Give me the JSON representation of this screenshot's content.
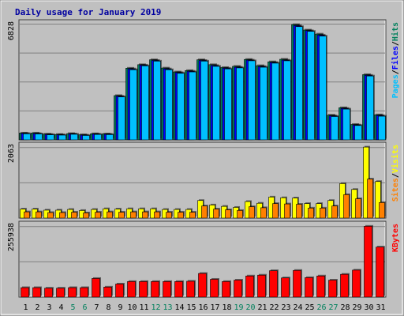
{
  "window": {
    "title": "Daily usage for January 2019"
  },
  "colors": {
    "background": "#c0c0c0",
    "title": "#0000a0",
    "hits": "#00805c",
    "files": "#0000ff",
    "pages": "#00c0ff",
    "visits": "#ffff00",
    "sites": "#ff8000",
    "kbytes": "#ff0000",
    "weekend_label": "#00805c",
    "weekday_label": "#000000"
  },
  "chart_data": {
    "type": "bar",
    "title": "Daily usage for January 2019",
    "days": [
      "1",
      "2",
      "3",
      "4",
      "5",
      "6",
      "7",
      "8",
      "9",
      "10",
      "11",
      "12",
      "13",
      "14",
      "15",
      "16",
      "17",
      "18",
      "19",
      "20",
      "21",
      "22",
      "23",
      "24",
      "25",
      "26",
      "27",
      "28",
      "29",
      "30",
      "31"
    ],
    "weekend_days": [
      "5",
      "6",
      "12",
      "13",
      "19",
      "20",
      "26",
      "27"
    ],
    "panels": [
      {
        "id": "hits_files_pages",
        "ymax_label": "6828",
        "ymax": 6828,
        "right_labels": [
          "Pages",
          "/",
          "Files",
          "/",
          "Hits"
        ],
        "series": [
          {
            "name": "Hits",
            "values": [
              400,
              400,
              340,
              320,
              370,
              300,
              360,
              350,
              2620,
              4240,
              4450,
              4740,
              4250,
              4020,
              4100,
              4740,
              4450,
              4280,
              4350,
              4760,
              4390,
              4620,
              4770,
              6820,
              6500,
              6260,
              1460,
              1900,
              910,
              3860,
              1480
            ]
          },
          {
            "name": "Files",
            "values": [
              380,
              370,
              320,
              300,
              350,
              280,
              340,
              330,
              2580,
              4200,
              4420,
              4700,
              4200,
              3980,
              4060,
              4700,
              4400,
              4240,
              4300,
              4720,
              4340,
              4580,
              4720,
              6760,
              6460,
              6200,
              1420,
              1860,
              880,
              3820,
              1440
            ]
          },
          {
            "name": "Pages",
            "values": [
              360,
              350,
              300,
              280,
              330,
              260,
              320,
              310,
              2540,
              4150,
              4380,
              4660,
              4150,
              3940,
              4020,
              4660,
              4350,
              4200,
              4260,
              4680,
              4300,
              4540,
              4680,
              6700,
              6420,
              6140,
              1380,
              1820,
              850,
              3780,
              1400
            ]
          }
        ]
      },
      {
        "id": "visits_sites",
        "ymax_label": "2063",
        "ymax": 2063,
        "right_labels": [
          "Sites",
          "/",
          "Visits"
        ],
        "series": [
          {
            "name": "Visits",
            "values": [
              260,
              260,
              230,
              230,
              250,
              220,
              250,
              270,
              260,
              270,
              270,
              270,
              250,
              250,
              250,
              510,
              380,
              340,
              310,
              480,
              430,
              610,
              590,
              580,
              420,
              420,
              510,
              1000,
              830,
              2060,
              1060
            ]
          },
          {
            "name": "Sites",
            "values": [
              180,
              180,
              160,
              160,
              170,
              150,
              170,
              180,
              170,
              180,
              180,
              180,
              170,
              170,
              170,
              350,
              260,
              240,
              220,
              330,
              300,
              420,
              410,
              400,
              290,
              290,
              350,
              680,
              560,
              1130,
              450
            ]
          }
        ]
      },
      {
        "id": "kbytes",
        "ymax_label": "255938",
        "ymax": 255938,
        "right_labels": [
          "KBytes"
        ],
        "series": [
          {
            "name": "KBytes",
            "values": [
              34000,
              34000,
              32000,
              32000,
              34000,
              34000,
              67000,
              36000,
              47000,
              56000,
              56000,
              56000,
              56000,
              56000,
              57000,
              85000,
              64000,
              56000,
              61000,
              76000,
              79000,
              95000,
              69000,
              96000,
              70000,
              76000,
              61000,
              82000,
              97000,
              255000,
              180000
            ]
          }
        ]
      }
    ]
  }
}
